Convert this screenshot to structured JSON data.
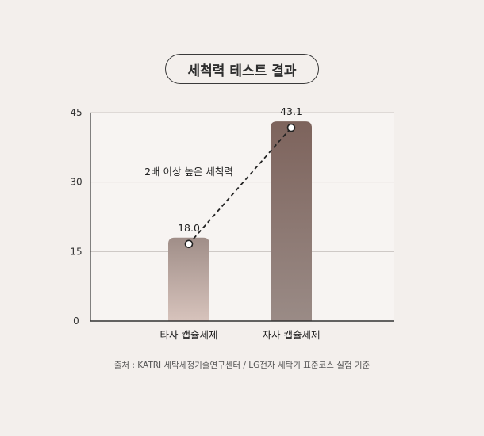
{
  "title": "세척력 테스트 결과",
  "source_note": "출처 : KATRI 세탁세정기술연구센터 / LG전자 세탁기 표준코스 실험 기준",
  "colors": {
    "background": "#f3efec",
    "plot_background": "#f7f4f2",
    "bar_other_top": "#a08e88",
    "bar_other_bottom": "#d7c3bc",
    "bar_ours_top": "#7d635c",
    "bar_ours_bottom": "#9a8b86"
  },
  "chart_data": {
    "type": "bar",
    "categories": [
      "타사 캡슐세제",
      "자사 캡슐세제"
    ],
    "values": [
      18.0,
      43.1
    ],
    "value_labels": [
      "18.0",
      "43.1"
    ],
    "yticks": [
      0,
      15,
      30,
      45
    ],
    "ylim": [
      0,
      45
    ],
    "grid": true,
    "annotation": "2배 이상 높은 세척력"
  }
}
